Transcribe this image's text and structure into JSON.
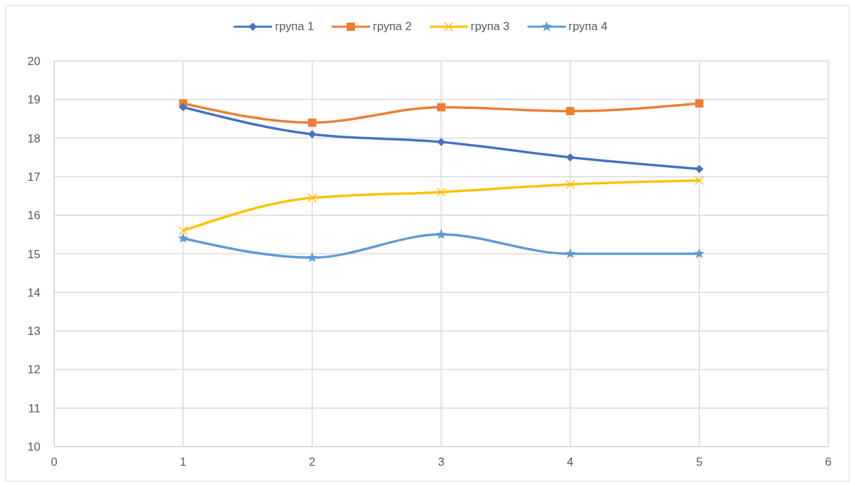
{
  "chart_data": {
    "type": "line",
    "x": [
      1,
      2,
      3,
      4,
      5
    ],
    "xlim": [
      0,
      6
    ],
    "xticks": [
      0,
      1,
      2,
      3,
      4,
      5,
      6
    ],
    "ylim": [
      10,
      20
    ],
    "yticks": [
      10,
      11,
      12,
      13,
      14,
      15,
      16,
      17,
      18,
      19,
      20
    ],
    "grid": true,
    "legend": "top",
    "series": [
      {
        "name": "група 1",
        "color": "#4472c4",
        "marker": "diamond",
        "values": [
          18.8,
          18.1,
          17.9,
          17.5,
          17.2
        ]
      },
      {
        "name": "група 2",
        "color": "#ed7d31",
        "marker": "square",
        "values": [
          18.9,
          18.4,
          18.8,
          18.7,
          18.9
        ]
      },
      {
        "name": "група 3",
        "color": "#ffc000",
        "marker": "cross",
        "values": [
          15.6,
          16.45,
          16.6,
          16.8,
          16.9
        ]
      },
      {
        "name": "група 4",
        "color": "#5b9bd5",
        "marker": "star",
        "values": [
          15.4,
          14.9,
          15.5,
          15.0,
          15.0
        ]
      }
    ]
  }
}
